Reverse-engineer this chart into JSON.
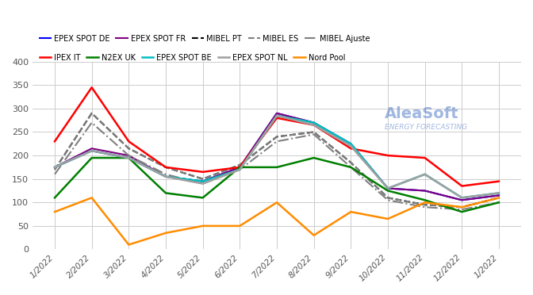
{
  "title": "",
  "ylabel": "",
  "xlabel": "",
  "ylim": [
    0,
    400
  ],
  "yticks": [
    0,
    50,
    100,
    150,
    200,
    250,
    300,
    350,
    400
  ],
  "background_color": "#ffffff",
  "grid_color": "#cccccc",
  "x_labels": [
    "1/2022",
    "2/2022",
    "3/2022",
    "4/2022",
    "5/2022",
    "6/2022",
    "7/2022",
    "8/2022",
    "9/2022",
    "10/2022",
    "11/2022",
    "12/2022",
    "1/2022"
  ],
  "series": [
    {
      "name": "EPEX SPOT DE",
      "color": "#0000ff",
      "style": "-",
      "linewidth": 1.5,
      "values": [
        175,
        210,
        195,
        155,
        145,
        175,
        290,
        270,
        225,
        130,
        125,
        105,
        115
      ]
    },
    {
      "name": "EPEX SPOT FR",
      "color": "#7f007f",
      "style": "-",
      "linewidth": 1.5,
      "values": [
        175,
        215,
        200,
        155,
        145,
        175,
        290,
        270,
        225,
        130,
        125,
        105,
        115
      ]
    },
    {
      "name": "MIBEL PT",
      "color": "#000000",
      "style": "--",
      "linewidth": 1.5,
      "values": [
        170,
        290,
        215,
        175,
        150,
        180,
        240,
        250,
        185,
        110,
        95,
        90,
        110
      ]
    },
    {
      "name": "MIBEL ES",
      "color": "#808080",
      "style": "--",
      "linewidth": 1.5,
      "values": [
        170,
        290,
        215,
        175,
        150,
        180,
        240,
        250,
        185,
        110,
        95,
        90,
        110
      ]
    },
    {
      "name": "MIBEL Ajuste",
      "color": "#808080",
      "style": "-.",
      "linewidth": 1.5,
      "values": [
        160,
        270,
        200,
        160,
        140,
        170,
        230,
        245,
        175,
        105,
        90,
        85,
        100
      ]
    },
    {
      "name": "IPEX IT",
      "color": "#ff0000",
      "style": "-",
      "linewidth": 1.8,
      "values": [
        230,
        345,
        230,
        175,
        165,
        175,
        280,
        265,
        215,
        200,
        195,
        135,
        145
      ]
    },
    {
      "name": "N2EX UK",
      "color": "#007f00",
      "style": "-",
      "linewidth": 1.8,
      "values": [
        110,
        195,
        195,
        120,
        110,
        175,
        175,
        195,
        175,
        125,
        105,
        80,
        100
      ]
    },
    {
      "name": "EPEX SPOT BE",
      "color": "#00bfbf",
      "style": "-",
      "linewidth": 1.8,
      "values": [
        175,
        210,
        195,
        155,
        145,
        170,
        285,
        270,
        225,
        130,
        160,
        110,
        120
      ]
    },
    {
      "name": "EPEX SPOT NL",
      "color": "#9f9f9f",
      "style": "-",
      "linewidth": 1.8,
      "values": [
        175,
        210,
        195,
        155,
        140,
        170,
        285,
        265,
        220,
        130,
        160,
        110,
        120
      ]
    },
    {
      "name": "Nord Pool",
      "color": "#ff8c00",
      "style": "-",
      "linewidth": 1.8,
      "values": [
        80,
        110,
        10,
        35,
        50,
        50,
        100,
        30,
        80,
        65,
        100,
        90,
        110
      ]
    }
  ],
  "legend_row1": [
    "EPEX SPOT DE",
    "EPEX SPOT FR",
    "MIBEL PT",
    "MIBEL ES",
    "MIBEL Ajuste"
  ],
  "legend_row2": [
    "IPEX IT",
    "N2EX UK",
    "EPEX SPOT BE",
    "EPEX SPOT NL",
    "Nord Pool"
  ],
  "watermark_text": "AleaSoft",
  "watermark_sub": "ENERGY FORECASTING"
}
